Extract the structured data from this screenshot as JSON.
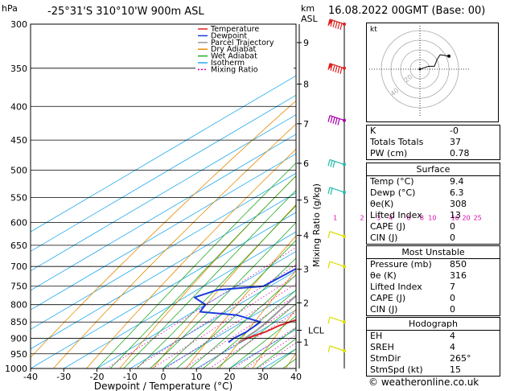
{
  "header": {
    "location": "-25°31'S 310°10'W 900m ASL",
    "datetime": "16.08.2022 00GMT (Base: 00)",
    "hpa_label": "hPa",
    "km_label": "km",
    "asl_label": "ASL"
  },
  "chart_data": {
    "type": "line",
    "subtype": "skew-T log-P diagram",
    "xlabel": "Dewpoint / Temperature (°C)",
    "ylabel_right": "Mixing Ratio (g/kg)",
    "x_ticks": [
      -40,
      -30,
      -20,
      -10,
      0,
      10,
      20,
      30,
      40
    ],
    "pressure_levels": [
      300,
      350,
      400,
      450,
      500,
      550,
      600,
      650,
      700,
      750,
      800,
      850,
      900,
      950,
      1000
    ],
    "km_ticks": [
      {
        "km": "1",
        "p": 912
      },
      {
        "km": "2",
        "p": 795
      },
      {
        "km": "3",
        "p": 707
      },
      {
        "km": "4",
        "p": 628
      },
      {
        "km": "5",
        "p": 555
      },
      {
        "km": "6",
        "p": 488
      },
      {
        "km": "7",
        "p": 425
      },
      {
        "km": "8",
        "p": 370
      },
      {
        "km": "9",
        "p": 320
      }
    ],
    "lcl": {
      "label": "LCL",
      "p": 875
    },
    "mixing_ratio_labels": [
      "1",
      "2",
      "3",
      "4",
      "6",
      "8",
      "10",
      "16",
      "20",
      "25"
    ],
    "legend": [
      "Temperature",
      "Dewpoint",
      "Parcel Trajectory",
      "Dry Adiabat",
      "Wet Adiabat",
      "Isotherm",
      "Mixing Ratio"
    ],
    "colors": {
      "temperature": "#dd2222",
      "dewpoint": "#1a3bdd",
      "parcel": "#999999",
      "dry_adiabat": "#e88a00",
      "wet_adiabat": "#22aa22",
      "isotherm": "#22aaee",
      "mixing_ratio": "#dd00aa"
    },
    "series": [
      {
        "name": "Temperature",
        "points": [
          [
            913,
            9.4
          ],
          [
            900,
            9.8
          ],
          [
            880,
            12
          ],
          [
            860,
            13
          ],
          [
            830,
            17
          ],
          [
            800,
            18
          ],
          [
            780,
            18.6
          ],
          [
            750,
            18
          ],
          [
            700,
            15
          ],
          [
            650,
            11
          ],
          [
            600,
            6
          ],
          [
            550,
            1.5
          ],
          [
            500,
            -5
          ],
          [
            475,
            -8
          ],
          [
            450,
            -11
          ],
          [
            420,
            -13
          ],
          [
            400,
            -17
          ],
          [
            350,
            -25
          ],
          [
            320,
            -31
          ],
          [
            300,
            -35
          ]
        ]
      },
      {
        "name": "Dewpoint",
        "points": [
          [
            913,
            6.3
          ],
          [
            900,
            5.8
          ],
          [
            880,
            6.3
          ],
          [
            850,
            5.5
          ],
          [
            830,
            -5
          ],
          [
            820,
            -18
          ],
          [
            800,
            -20
          ],
          [
            780,
            -27
          ],
          [
            760,
            -24
          ],
          [
            750,
            -12
          ],
          [
            700,
            -11
          ],
          [
            650,
            -16
          ],
          [
            600,
            -21
          ],
          [
            570,
            -28
          ],
          [
            550,
            -31
          ],
          [
            520,
            -25
          ],
          [
            500,
            -24
          ],
          [
            475,
            -30
          ],
          [
            455,
            -40
          ],
          [
            430,
            -29
          ],
          [
            415,
            -23
          ],
          [
            400,
            -20
          ],
          [
            350,
            -22
          ],
          [
            310,
            -25
          ],
          [
            300,
            -30
          ]
        ]
      },
      {
        "name": "Parcel Trajectory",
        "points": [
          [
            913,
            9.4
          ],
          [
            875,
            8.6
          ],
          [
            850,
            7.4
          ],
          [
            800,
            4.3
          ],
          [
            750,
            1.0
          ],
          [
            700,
            -2.8
          ],
          [
            650,
            -6.8
          ],
          [
            600,
            -11.3
          ],
          [
            550,
            -16.3
          ],
          [
            500,
            -22.0
          ],
          [
            450,
            -28.4
          ],
          [
            400,
            -35.8
          ],
          [
            350,
            -44.3
          ],
          [
            300,
            -54.2
          ]
        ]
      }
    ],
    "wind_barbs": [
      {
        "p": 300,
        "speed_kt": 65,
        "color": "#dd2222"
      },
      {
        "p": 350,
        "speed_kt": 60,
        "color": "#dd2222"
      },
      {
        "p": 420,
        "speed_kt": 45,
        "color": "#aa00aa"
      },
      {
        "p": 490,
        "speed_kt": 25,
        "color": "#22bbaa"
      },
      {
        "p": 540,
        "speed_kt": 15,
        "color": "#22bbaa"
      },
      {
        "p": 630,
        "speed_kt": 10,
        "color": "#dddd00"
      },
      {
        "p": 700,
        "speed_kt": 5,
        "color": "#dddd00"
      },
      {
        "p": 850,
        "speed_kt": 10,
        "color": "#dddd00"
      },
      {
        "p": 940,
        "speed_kt": 5,
        "color": "#dddd00"
      }
    ]
  },
  "hodograph": {
    "unit": "kt",
    "ring_labels": [
      "20",
      "40"
    ],
    "trace": [
      [
        0,
        0
      ],
      [
        3,
        1
      ],
      [
        6,
        2
      ],
      [
        10,
        2
      ],
      [
        12,
        7
      ],
      [
        14,
        10
      ],
      [
        20,
        9
      ]
    ]
  },
  "indices": {
    "rows": [
      {
        "label": "K",
        "value": "-0"
      },
      {
        "label": "Totals Totals",
        "value": "37"
      },
      {
        "label": "PW (cm)",
        "value": "0.78"
      }
    ]
  },
  "surface": {
    "title": "Surface",
    "rows": [
      {
        "label": "Temp (°C)",
        "value": "9.4"
      },
      {
        "label": "Dewp (°C)",
        "value": "6.3"
      },
      {
        "label": "θe(K)",
        "value": "308"
      },
      {
        "label": "Lifted Index",
        "value": "13"
      },
      {
        "label": "CAPE (J)",
        "value": "0"
      },
      {
        "label": "CIN (J)",
        "value": "0"
      }
    ]
  },
  "most_unstable": {
    "title": "Most Unstable",
    "rows": [
      {
        "label": "Pressure (mb)",
        "value": "850"
      },
      {
        "label": "θe (K)",
        "value": "316"
      },
      {
        "label": "Lifted Index",
        "value": "7"
      },
      {
        "label": "CAPE (J)",
        "value": "0"
      },
      {
        "label": "CIN (J)",
        "value": "0"
      }
    ]
  },
  "hodograph_params": {
    "title": "Hodograph",
    "rows": [
      {
        "label": "EH",
        "value": "4"
      },
      {
        "label": "SREH",
        "value": "4"
      },
      {
        "label": "StmDir",
        "value": "265°"
      },
      {
        "label": "StmSpd (kt)",
        "value": "15"
      }
    ]
  },
  "credit": "© weatheronline.co.uk"
}
